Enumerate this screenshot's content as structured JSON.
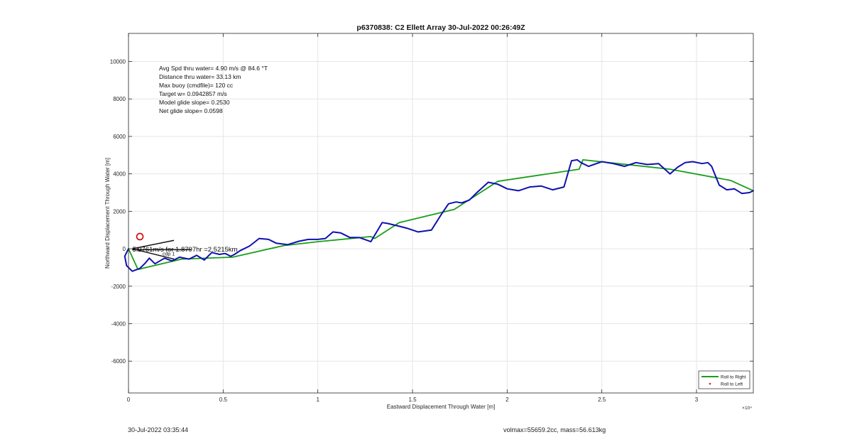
{
  "footer": {
    "left": "30-Jul-2022 03:35:44",
    "right": "volmax=55659.2cc, mass=56.613kg"
  },
  "chart_data": {
    "type": "line",
    "title": "p6370838: C2 Ellett Array 30-Jul-2022 00:26:49Z",
    "xlabel": "Eastward Displacement Through Water [m]",
    "ylabel": "Northward Displacement Through Water [m]",
    "x_exponent_label": "×10⁴",
    "xlim": [
      0,
      33000
    ],
    "ylim": [
      -7700,
      11500
    ],
    "x_ticks": [
      0,
      5000,
      10000,
      15000,
      20000,
      25000,
      30000
    ],
    "x_tick_labels": [
      "0",
      "0.5",
      "1",
      "1.5",
      "2",
      "2.5",
      "3"
    ],
    "y_ticks": [
      -6000,
      -4000,
      -2000,
      0,
      2000,
      4000,
      6000,
      8000,
      10000
    ],
    "y_tick_labels": [
      "-6000",
      "-4000",
      "-2000",
      "0",
      "2000",
      "4000",
      "6000",
      "8000",
      "10000"
    ],
    "grid": true,
    "legend_position": "bottom-right",
    "annotations": [
      "Avg Spd thru water=  4.90 m/s @  84.6 °T",
      "Distance thru water= 33.13 km",
      "Max buoy (cmdfile)= 120 cc",
      "Target w= 0.0942857 m/s",
      "Model glide slope= 0.2530",
      "Net glide slope= 0.0598"
    ],
    "overlay_label": "5.2761m/s for 1.8797hr =2.5215km",
    "overlay_sub_label": "cdp 1",
    "series": [
      {
        "name": "Roll to Right",
        "style": "line",
        "color": "#1a9e1a",
        "x": [
          0,
          500,
          2800,
          5500,
          8200,
          10000,
          12800,
          13000,
          14300,
          17200,
          19500,
          23800,
          24000,
          28600,
          28600,
          31800,
          33000
        ],
        "y": [
          0,
          -1100,
          -550,
          -450,
          170,
          380,
          650,
          550,
          1400,
          2100,
          3600,
          4250,
          4750,
          4250,
          4250,
          3650,
          3100
        ]
      },
      {
        "name": "Roll to Left",
        "style": "markers",
        "color": "#cc2222",
        "x": [
          500
        ],
        "y": [
          0
        ]
      },
      {
        "name": "",
        "style": "line",
        "color": "#0f10b0",
        "x": [
          0,
          -200,
          -100,
          200,
          600,
          900,
          1100,
          1400,
          1900,
          2300,
          2700,
          3200,
          3600,
          4000,
          4400,
          4800,
          5100,
          5400,
          5600,
          5900,
          6400,
          6900,
          7400,
          7800,
          8400,
          9000,
          9500,
          10000,
          10400,
          10800,
          11200,
          11700,
          12200,
          12800,
          13400,
          13700,
          14300,
          14700,
          15300,
          16000,
          16500,
          16900,
          17300,
          17600,
          18000,
          18400,
          19000,
          19500,
          20000,
          20600,
          21200,
          21800,
          22400,
          23000,
          23400,
          23700,
          23900,
          24300,
          25000,
          25600,
          26200,
          26800,
          27400,
          28000,
          28600,
          29000,
          29400,
          29800,
          30300,
          30600,
          30800,
          31200,
          31600,
          32000,
          32400,
          32800,
          33000
        ],
        "y": [
          0,
          -400,
          -900,
          -1200,
          -1050,
          -750,
          -500,
          -800,
          -500,
          -650,
          -450,
          -550,
          -350,
          -600,
          -200,
          -300,
          -250,
          -400,
          -300,
          -100,
          150,
          550,
          500,
          300,
          220,
          400,
          500,
          500,
          550,
          900,
          850,
          600,
          600,
          380,
          1400,
          1350,
          1200,
          1100,
          900,
          1000,
          1800,
          2400,
          2500,
          2450,
          2600,
          3000,
          3550,
          3450,
          3200,
          3100,
          3300,
          3350,
          3150,
          3300,
          4700,
          4750,
          4600,
          4400,
          4650,
          4550,
          4400,
          4600,
          4500,
          4550,
          4000,
          4350,
          4600,
          4650,
          4550,
          4600,
          4400,
          3400,
          3150,
          3200,
          2950,
          3000,
          3100
        ]
      }
    ],
    "extra_marks": {
      "circle_marker": {
        "x": 600,
        "y": 650,
        "color": "#cc0000"
      },
      "vector_lines": [
        {
          "x1": 200,
          "y1": 0,
          "x2": 2400,
          "y2": 450
        },
        {
          "x1": 200,
          "y1": 0,
          "x2": 2400,
          "y2": -550
        },
        {
          "x1": 200,
          "y1": -50,
          "x2": 3300,
          "y2": -50
        }
      ]
    }
  }
}
